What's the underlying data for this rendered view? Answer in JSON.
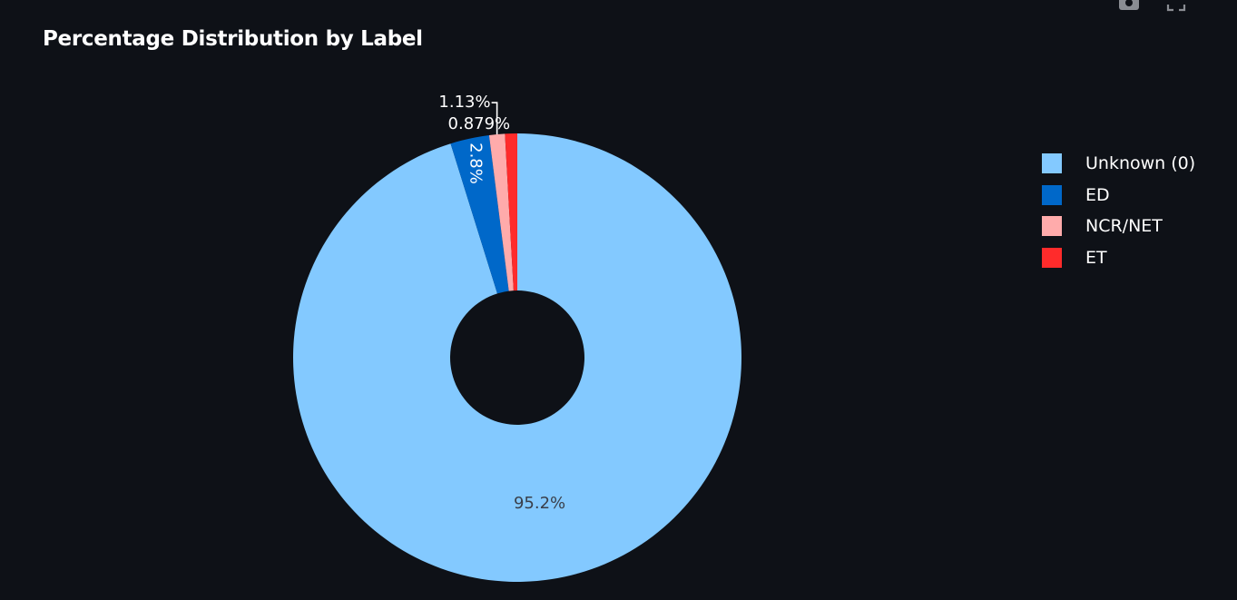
{
  "toolbar": {
    "icons": [
      "camera-icon",
      "fullscreen-icon"
    ]
  },
  "chart_data": {
    "type": "pie",
    "title": "Percentage Distribution by Label",
    "hole": true,
    "legend_position": "top-right",
    "slices": [
      {
        "label": "Unknown (0)",
        "value": 95.2,
        "text": "95.2%",
        "color": "#83c9ff"
      },
      {
        "label": "ED",
        "value": 2.8,
        "text": "2.8%",
        "color": "#0068c9"
      },
      {
        "label": "NCR/NET",
        "value": 1.13,
        "text": "1.13%",
        "color": "#ffabab"
      },
      {
        "label": "ET",
        "value": 0.879,
        "text": "0.879%",
        "color": "#ff2b2b"
      }
    ]
  }
}
